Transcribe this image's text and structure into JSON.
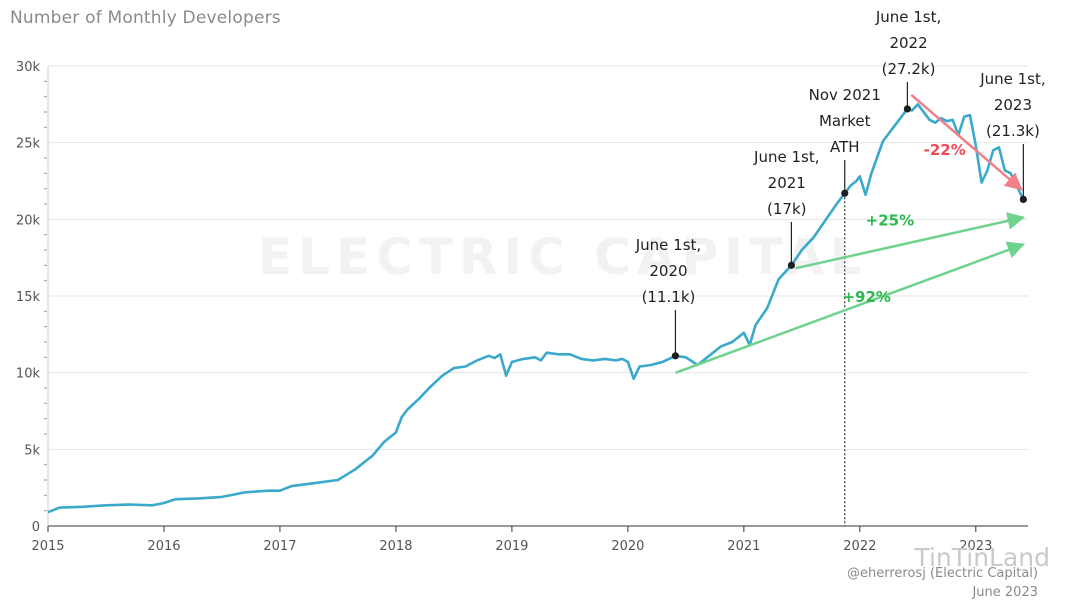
{
  "header": {
    "title": "Number of Monthly Developers"
  },
  "footer": {
    "credit": "@eherrerosj (Electric Capital)",
    "date": "June 2023"
  },
  "watermark": {
    "background": "ELECTRIC CAPITAL",
    "logo": "TinTinLand"
  },
  "colors": {
    "line": "#3aa9cc",
    "green": "#6fd38e",
    "red": "#f07f86",
    "green_text": "#2db84f",
    "red_text": "#ef4a55",
    "grid": "#e6e6e6",
    "marker": "#1e1e1e"
  },
  "chart_data": {
    "type": "line",
    "title": "Number of Monthly Developers",
    "xlabel": "",
    "ylabel": "",
    "xlim": [
      2015.0,
      2023.45
    ],
    "ylim": [
      0,
      30000
    ],
    "y_ticks": [
      0,
      5000,
      10000,
      15000,
      20000,
      25000,
      30000
    ],
    "y_tick_labels": [
      "0",
      "5k",
      "10k",
      "15k",
      "20k",
      "25k",
      "30k"
    ],
    "x_ticks": [
      2015,
      2016,
      2017,
      2018,
      2019,
      2020,
      2021,
      2022,
      2023
    ],
    "x_tick_labels": [
      "2015",
      "2016",
      "2017",
      "2018",
      "2019",
      "2020",
      "2021",
      "2022",
      "2023"
    ],
    "grid": true,
    "series": [
      {
        "name": "Monthly developers",
        "x": [
          2015.0,
          2015.1,
          2015.3,
          2015.5,
          2015.7,
          2015.9,
          2016.0,
          2016.1,
          2016.3,
          2016.5,
          2016.7,
          2016.9,
          2017.0,
          2017.1,
          2017.3,
          2017.5,
          2017.65,
          2017.8,
          2017.9,
          2018.0,
          2018.05,
          2018.1,
          2018.2,
          2018.3,
          2018.4,
          2018.5,
          2018.6,
          2018.7,
          2018.8,
          2018.85,
          2018.9,
          2018.95,
          2019.0,
          2019.05,
          2019.1,
          2019.2,
          2019.25,
          2019.3,
          2019.4,
          2019.5,
          2019.6,
          2019.7,
          2019.8,
          2019.9,
          2019.95,
          2020.0,
          2020.05,
          2020.1,
          2020.2,
          2020.3,
          2020.41,
          2020.5,
          2020.6,
          2020.7,
          2020.8,
          2020.9,
          2021.0,
          2021.05,
          2021.1,
          2021.2,
          2021.3,
          2021.41,
          2021.5,
          2021.6,
          2021.7,
          2021.8,
          2021.87,
          2021.92,
          2021.97,
          2022.0,
          2022.05,
          2022.1,
          2022.2,
          2022.3,
          2022.41,
          2022.45,
          2022.5,
          2022.6,
          2022.65,
          2022.7,
          2022.75,
          2022.8,
          2022.85,
          2022.9,
          2022.95,
          2023.0,
          2023.05,
          2023.1,
          2023.15,
          2023.2,
          2023.25,
          2023.3,
          2023.35,
          2023.41
        ],
        "values": [
          900,
          1200,
          1250,
          1350,
          1400,
          1350,
          1500,
          1750,
          1800,
          1900,
          2200,
          2300,
          2300,
          2600,
          2800,
          3000,
          3700,
          4600,
          5500,
          6100,
          7100,
          7600,
          8300,
          9100,
          9800,
          10300,
          10400,
          10800,
          11100,
          10950,
          11200,
          9800,
          10700,
          10800,
          10900,
          11000,
          10800,
          11300,
          11200,
          11200,
          10900,
          10800,
          10900,
          10800,
          10900,
          10700,
          9600,
          10400,
          10500,
          10700,
          11100,
          11000,
          10500,
          11100,
          11700,
          12000,
          12600,
          11800,
          13100,
          14200,
          16100,
          17000,
          18000,
          18800,
          19900,
          21000,
          21700,
          22200,
          22500,
          22800,
          21600,
          23000,
          25100,
          26100,
          27200,
          27100,
          27500,
          26500,
          26300,
          26600,
          26400,
          26500,
          25500,
          26700,
          26800,
          24800,
          22400,
          23200,
          24500,
          24700,
          23200,
          23000,
          22200,
          21300
        ]
      }
    ],
    "reference_line": {
      "x": 2021.87,
      "label": "Nov 2021 Market ATH"
    },
    "annotations": [
      {
        "x": 2020.41,
        "y": 11100,
        "lines": [
          "June 1st,",
          "2020",
          "(11.1k)"
        ]
      },
      {
        "x": 2021.41,
        "y": 17000,
        "lines": [
          "June 1st,",
          "2021",
          "(17k)"
        ]
      },
      {
        "x": 2021.87,
        "y": 21700,
        "lines": [
          "Nov 2021",
          "Market",
          "ATH"
        ]
      },
      {
        "x": 2022.41,
        "y": 27200,
        "lines": [
          "June 1st,",
          "2022",
          "(27.2k)"
        ]
      },
      {
        "x": 2023.41,
        "y": 21300,
        "lines": [
          "June 1st,",
          "2023",
          "(21.3k)"
        ]
      }
    ],
    "changes": [
      {
        "label": "+92%",
        "from": "June 1st, 2020",
        "to": "June 1st, 2023"
      },
      {
        "label": "+25%",
        "from": "June 1st, 2021",
        "to": "June 1st, 2023"
      },
      {
        "label": "-22%",
        "from": "June 1st, 2022",
        "to": "June 1st, 2023"
      }
    ]
  }
}
